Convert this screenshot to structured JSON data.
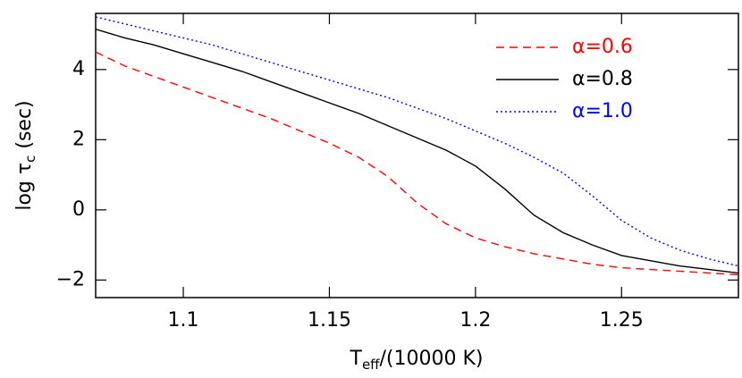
{
  "chart_data": {
    "type": "line",
    "xlabel": [
      "T",
      "eff",
      "/(10000 K)"
    ],
    "ylabel": [
      "log τ",
      "c",
      " (sec)"
    ],
    "x": [
      1.07,
      1.08,
      1.09,
      1.1,
      1.11,
      1.12,
      1.13,
      1.14,
      1.15,
      1.16,
      1.17,
      1.18,
      1.19,
      1.2,
      1.21,
      1.22,
      1.23,
      1.24,
      1.25,
      1.26,
      1.27,
      1.28,
      1.29
    ],
    "series": [
      {
        "name": "α=0.6",
        "color": "#ff0000",
        "linestyle": "dashed",
        "values": [
          4.5,
          4.1,
          3.8,
          3.5,
          3.2,
          2.9,
          2.6,
          2.25,
          1.9,
          1.5,
          0.95,
          0.2,
          -0.4,
          -0.8,
          -1.05,
          -1.25,
          -1.4,
          -1.55,
          -1.65,
          -1.7,
          -1.75,
          -1.8,
          -1.85
        ]
      },
      {
        "name": "α=0.8",
        "color": "#000000",
        "linestyle": "solid",
        "values": [
          5.15,
          4.9,
          4.7,
          4.45,
          4.2,
          3.95,
          3.65,
          3.35,
          3.05,
          2.75,
          2.4,
          2.05,
          1.7,
          1.25,
          0.6,
          -0.15,
          -0.65,
          -1.0,
          -1.3,
          -1.45,
          -1.6,
          -1.7,
          -1.8
        ]
      },
      {
        "name": "α=1.0",
        "color": "#0000ff",
        "linestyle": "dotted",
        "values": [
          5.5,
          5.3,
          5.1,
          4.9,
          4.7,
          4.45,
          4.2,
          3.95,
          3.7,
          3.45,
          3.2,
          2.9,
          2.6,
          2.25,
          1.9,
          1.5,
          1.05,
          0.4,
          -0.3,
          -0.8,
          -1.15,
          -1.4,
          -1.6
        ]
      }
    ],
    "xlim": [
      1.07,
      1.29
    ],
    "xticks": [
      1.1,
      1.15,
      1.2,
      1.25
    ],
    "ylim": [
      -2.5,
      5.6
    ],
    "yticks": [
      {
        "value": -2,
        "label": "−2"
      },
      0,
      2,
      4
    ],
    "legend": "upper right",
    "grid": false
  }
}
